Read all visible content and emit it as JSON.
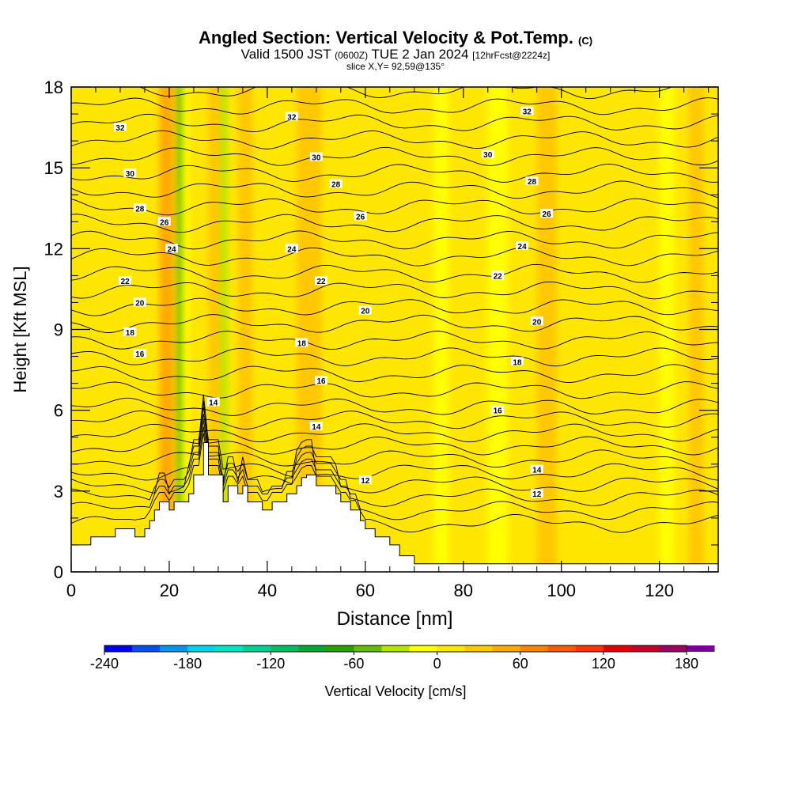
{
  "title": {
    "main": "Angled Section: Vertical Velocity & Pot.Temp.",
    "unit_tag": "(C)",
    "valid_prefix": "Valid 1500 JST",
    "valid_utc": "(0600Z)",
    "valid_date": "TUE 2 Jan 2024",
    "valid_fcst": "[12hrFcst@2224z]",
    "slice": "slice X,Y= 92,59@135°"
  },
  "chart_data": {
    "type": "heatmap",
    "xlabel": "Distance [nm]",
    "ylabel": "Height [Kft MSL]",
    "xlim": [
      0,
      132
    ],
    "ylim": [
      0,
      18
    ],
    "x_ticks": [
      "0",
      "20",
      "40",
      "60",
      "80",
      "100",
      "120"
    ],
    "y_ticks": [
      "0",
      "3",
      "6",
      "9",
      "12",
      "15",
      "18"
    ],
    "terrain": {
      "x": [
        0,
        4,
        4,
        9,
        9,
        13,
        13,
        15,
        15,
        16,
        16,
        17,
        17,
        18,
        18,
        20,
        20,
        21,
        21,
        24,
        24,
        25,
        25,
        27,
        27,
        28,
        28,
        31,
        31,
        32,
        32,
        34,
        34,
        35,
        35,
        36,
        36,
        39,
        39,
        41,
        41,
        44,
        44,
        46,
        46,
        47,
        47,
        48,
        48,
        50,
        50,
        54,
        54,
        55,
        55,
        57,
        57,
        59,
        59,
        60,
        60,
        62,
        62,
        65,
        65,
        67,
        67,
        70,
        70,
        132
      ],
      "y": [
        1.0,
        1.0,
        1.3,
        1.3,
        1.6,
        1.6,
        1.3,
        1.3,
        1.6,
        1.6,
        1.9,
        1.9,
        2.3,
        2.3,
        2.6,
        2.6,
        2.3,
        2.3,
        2.6,
        2.6,
        2.9,
        2.9,
        3.6,
        3.6,
        4.8,
        4.8,
        3.6,
        3.6,
        2.6,
        2.6,
        3.2,
        3.2,
        2.9,
        2.9,
        3.2,
        3.2,
        2.6,
        2.6,
        2.3,
        2.3,
        2.6,
        2.6,
        2.9,
        2.9,
        3.2,
        3.2,
        3.5,
        3.5,
        3.6,
        3.6,
        3.2,
        3.2,
        2.9,
        2.9,
        2.6,
        2.6,
        2.3,
        2.3,
        1.9,
        1.9,
        1.6,
        1.6,
        1.3,
        1.3,
        1.0,
        1.0,
        0.6,
        0.6,
        0.3,
        0.3
      ]
    },
    "vertical_velocity_columns": [
      {
        "x": 10,
        "width": 3,
        "value": 10
      },
      {
        "x": 18,
        "width": 3,
        "value": 45
      },
      {
        "x": 21.5,
        "width": 1.2,
        "value": -45
      },
      {
        "x": 22.8,
        "width": 1.2,
        "value": -20
      },
      {
        "x": 28,
        "width": 3,
        "value": 35
      },
      {
        "x": 30.5,
        "width": 1.3,
        "value": -30
      },
      {
        "x": 34,
        "width": 3,
        "value": 20
      },
      {
        "x": 46,
        "width": 5,
        "value": 30
      },
      {
        "x": 53,
        "width": 4,
        "value": 10
      },
      {
        "x": 63,
        "width": 3,
        "value": 15
      },
      {
        "x": 74,
        "width": 3,
        "value": -8
      },
      {
        "x": 85,
        "width": 4,
        "value": -8
      },
      {
        "x": 95,
        "width": 4,
        "value": 35
      },
      {
        "x": 112,
        "width": 3,
        "value": 12
      },
      {
        "x": 120,
        "width": 3,
        "value": -8
      },
      {
        "x": 126,
        "width": 3,
        "value": 20
      }
    ],
    "contour_levels": {
      "count": 31,
      "surface_level": 1.8,
      "spacing_near_surface": 0.48,
      "spacing_aloft": 0.62
    },
    "contour_labels": [
      {
        "text": "32",
        "x": 10,
        "y": 16.5
      },
      {
        "text": "30",
        "x": 12,
        "y": 14.8
      },
      {
        "text": "28",
        "x": 14,
        "y": 13.5
      },
      {
        "text": "26",
        "x": 19,
        "y": 13.0
      },
      {
        "text": "24",
        "x": 20.5,
        "y": 12.0
      },
      {
        "text": "22",
        "x": 11,
        "y": 10.8
      },
      {
        "text": "20",
        "x": 14,
        "y": 10.0
      },
      {
        "text": "18",
        "x": 12,
        "y": 8.9
      },
      {
        "text": "16",
        "x": 14,
        "y": 8.1
      },
      {
        "text": "14",
        "x": 29,
        "y": 6.3
      },
      {
        "text": "32",
        "x": 45,
        "y": 16.9
      },
      {
        "text": "30",
        "x": 50,
        "y": 15.4
      },
      {
        "text": "28",
        "x": 54,
        "y": 14.4
      },
      {
        "text": "26",
        "x": 59,
        "y": 13.2
      },
      {
        "text": "24",
        "x": 45,
        "y": 12.0
      },
      {
        "text": "22",
        "x": 51,
        "y": 10.8
      },
      {
        "text": "20",
        "x": 60,
        "y": 9.7
      },
      {
        "text": "18",
        "x": 47,
        "y": 8.5
      },
      {
        "text": "16",
        "x": 51,
        "y": 7.1
      },
      {
        "text": "14",
        "x": 50,
        "y": 5.4
      },
      {
        "text": "12",
        "x": 60,
        "y": 3.4
      },
      {
        "text": "32",
        "x": 93,
        "y": 17.1
      },
      {
        "text": "30",
        "x": 85,
        "y": 15.5
      },
      {
        "text": "28",
        "x": 94,
        "y": 14.5
      },
      {
        "text": "26",
        "x": 97,
        "y": 13.3
      },
      {
        "text": "24",
        "x": 92,
        "y": 12.1
      },
      {
        "text": "22",
        "x": 87,
        "y": 11.0
      },
      {
        "text": "20",
        "x": 95,
        "y": 9.3
      },
      {
        "text": "18",
        "x": 91,
        "y": 7.8
      },
      {
        "text": "16",
        "x": 87,
        "y": 6.0
      },
      {
        "text": "14",
        "x": 95,
        "y": 3.8
      },
      {
        "text": "12",
        "x": 95,
        "y": 2.9
      }
    ],
    "colorbar": {
      "label": "Vertical Velocity [cm/s]",
      "tick_labels": [
        "-240",
        "-180",
        "-120",
        "-60",
        "0",
        "60",
        "120",
        "180"
      ],
      "range": [
        -240,
        180
      ],
      "step": 20,
      "colors": [
        "#0000f0",
        "#0050f0",
        "#0096f0",
        "#00d2f0",
        "#00e6c8",
        "#00d296",
        "#00be64",
        "#00aa32",
        "#28a000",
        "#64be00",
        "#b4e600",
        "#ffff00",
        "#ffe600",
        "#ffc800",
        "#ffaa00",
        "#ff8200",
        "#ff5a00",
        "#ff3200",
        "#e60000",
        "#c80028",
        "#a00064",
        "#780096"
      ]
    }
  }
}
